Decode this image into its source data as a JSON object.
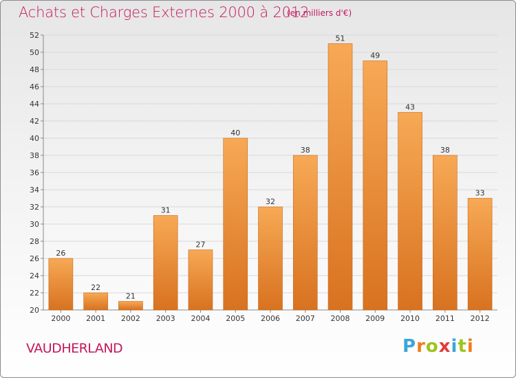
{
  "header": {
    "title": "Achats et Charges Externes 2000 à 2012",
    "subtitle": "(en milliers d'€)"
  },
  "footer": {
    "commune": "VAUDHERLAND",
    "logo_text": "Proxiti"
  },
  "logo_letters": [
    {
      "ch": "P",
      "color": "#3aa6dc"
    },
    {
      "ch": "r",
      "color": "#ef7d1a"
    },
    {
      "ch": "o",
      "color": "#9ec41d"
    },
    {
      "ch": "x",
      "color": "#e23b3b"
    },
    {
      "ch": "i",
      "color": "#3aa6dc"
    },
    {
      "ch": "t",
      "color": "#9ec41d"
    },
    {
      "ch": "i",
      "color": "#ef7d1a"
    }
  ],
  "colors": {
    "bar_light": "#f7a955",
    "bar_dark": "#d87220",
    "bar_edge": "#c8661a",
    "title": "#c2185b",
    "grid": "#d8d8d8"
  },
  "chart_data": {
    "type": "bar",
    "title": "Achats et Charges Externes 2000 à 2012",
    "subtitle": "(en milliers d'€)",
    "categories": [
      "2000",
      "2001",
      "2002",
      "2003",
      "2004",
      "2005",
      "2006",
      "2007",
      "2008",
      "2009",
      "2010",
      "2011",
      "2012"
    ],
    "values": [
      26,
      22,
      21,
      31,
      27,
      40,
      32,
      38,
      51,
      49,
      43,
      38,
      33
    ],
    "ylim": [
      20,
      52
    ],
    "yticks": [
      20,
      22,
      24,
      26,
      28,
      30,
      32,
      34,
      36,
      38,
      40,
      42,
      44,
      46,
      48,
      50,
      52
    ],
    "grid": true,
    "xlabel": "",
    "ylabel": ""
  }
}
